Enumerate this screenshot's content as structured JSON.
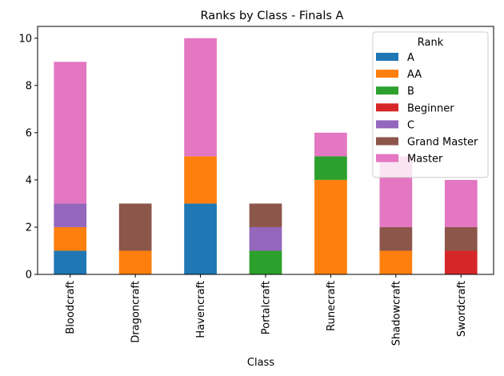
{
  "chart_data": {
    "type": "bar",
    "stacked": true,
    "title": "Ranks by Class - Finals A",
    "xlabel": "Class",
    "ylabel": "",
    "ylim": [
      0,
      10.5
    ],
    "yticks": [
      0,
      2,
      4,
      6,
      8,
      10
    ],
    "grid": false,
    "legend": {
      "title": "Rank",
      "placement": "top-right"
    },
    "categories": [
      "Bloodcraft",
      "Dragoncraft",
      "Havencraft",
      "Portalcraft",
      "Runecraft",
      "Shadowcraft",
      "Swordcraft"
    ],
    "series": [
      {
        "name": "A",
        "color": "#1f77b4",
        "values": [
          1,
          0,
          3,
          0,
          0,
          0,
          0
        ]
      },
      {
        "name": "AA",
        "color": "#ff7f0e",
        "values": [
          1,
          1,
          2,
          0,
          4,
          1,
          0
        ]
      },
      {
        "name": "B",
        "color": "#2ca02c",
        "values": [
          0,
          0,
          0,
          1,
          1,
          0,
          0
        ]
      },
      {
        "name": "Beginner",
        "color": "#d62728",
        "values": [
          0,
          0,
          0,
          0,
          0,
          0,
          1
        ]
      },
      {
        "name": "C",
        "color": "#9467bd",
        "values": [
          1,
          0,
          0,
          1,
          0,
          0,
          0
        ]
      },
      {
        "name": "Grand Master",
        "color": "#8c564b",
        "values": [
          0,
          2,
          0,
          1,
          0,
          1,
          1
        ]
      },
      {
        "name": "Master",
        "color": "#e377c2",
        "values": [
          6,
          0,
          5,
          0,
          1,
          3,
          2
        ]
      }
    ]
  }
}
